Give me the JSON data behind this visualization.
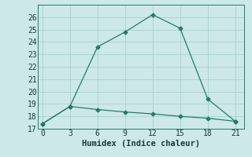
{
  "xlabel": "Humidex (Indice chaleur)",
  "line1_x": [
    0,
    3,
    6,
    9,
    12,
    15,
    18,
    21
  ],
  "line1_y": [
    17.4,
    18.8,
    23.6,
    24.8,
    26.2,
    25.1,
    19.4,
    17.6
  ],
  "line2_x": [
    0,
    3,
    6,
    9,
    12,
    15,
    18,
    21
  ],
  "line2_y": [
    17.4,
    18.8,
    18.55,
    18.35,
    18.2,
    18.0,
    17.85,
    17.6
  ],
  "xlim": [
    -0.5,
    22
  ],
  "ylim": [
    17,
    27
  ],
  "xticks": [
    0,
    3,
    6,
    9,
    12,
    15,
    18,
    21
  ],
  "yticks": [
    17,
    18,
    19,
    20,
    21,
    22,
    23,
    24,
    25,
    26
  ],
  "line_color": "#2a7a6a",
  "bg_color": "#cce8e8",
  "grid_color": "#aad0d0",
  "marker": "D",
  "marker_size": 2.5,
  "linewidth": 0.9,
  "xlabel_fontsize": 7.5,
  "tick_fontsize": 7
}
